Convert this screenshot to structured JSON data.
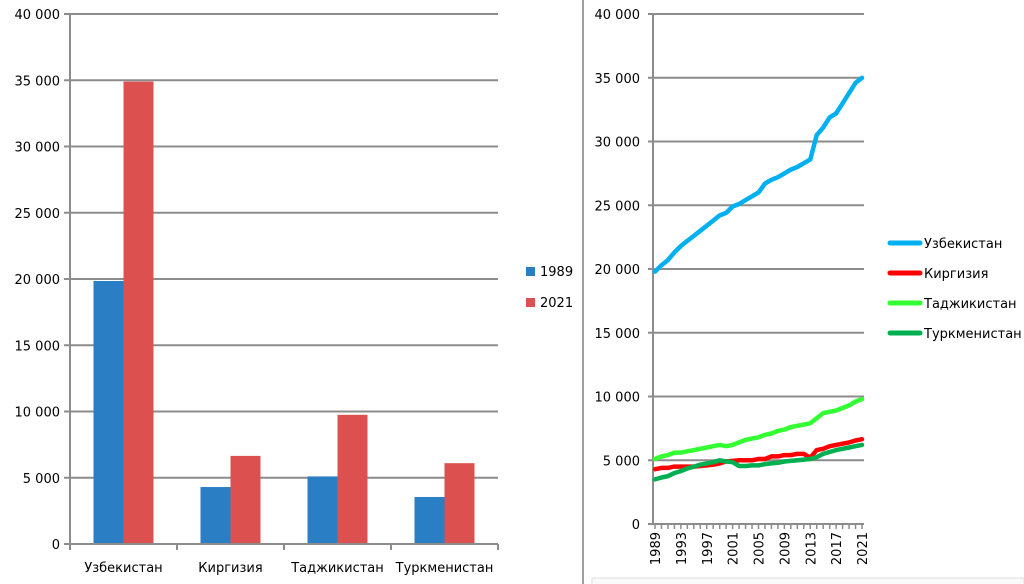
{
  "chart_data": [
    {
      "type": "bar",
      "categories": [
        "Узбекистан",
        "Киргизия",
        "Таджикистан",
        "Туркменистан"
      ],
      "series": [
        {
          "name": "1989",
          "color": "#2a7fc4",
          "values": [
            19850,
            4300,
            5100,
            3550
          ]
        },
        {
          "name": "2021",
          "color": "#dc5050",
          "values": [
            34900,
            6650,
            9750,
            6100
          ]
        }
      ],
      "ylim": [
        0,
        40000
      ],
      "yticks": [
        0,
        5000,
        10000,
        15000,
        20000,
        25000,
        30000,
        35000,
        40000
      ],
      "ytick_labels": [
        "0",
        "5 000",
        "10 000",
        "15 000",
        "20 000",
        "25 000",
        "30 000",
        "35 000",
        "40 000"
      ],
      "grid": true,
      "legend": "right"
    },
    {
      "type": "line",
      "x": [
        1989,
        1990,
        1991,
        1992,
        1993,
        1994,
        1995,
        1996,
        1997,
        1998,
        1999,
        2000,
        2001,
        2002,
        2003,
        2004,
        2005,
        2006,
        2007,
        2008,
        2009,
        2010,
        2011,
        2012,
        2013,
        2014,
        2015,
        2016,
        2017,
        2018,
        2019,
        2020,
        2021
      ],
      "xtick_labels": [
        "1989",
        "1993",
        "1997",
        "2001",
        "2005",
        "2009",
        "2013",
        "2017",
        "2021"
      ],
      "series": [
        {
          "name": "Узбекистан",
          "color": "#00b0f0",
          "values": [
            19800,
            20300,
            20700,
            21300,
            21800,
            22200,
            22600,
            23000,
            23400,
            23800,
            24200,
            24400,
            24900,
            25100,
            25400,
            25700,
            26000,
            26700,
            27000,
            27200,
            27500,
            27800,
            28000,
            28300,
            28600,
            30500,
            31100,
            31900,
            32200,
            33000,
            33800,
            34600,
            35000
          ]
        },
        {
          "name": "Киргизия",
          "color": "#ff0000",
          "values": [
            4300,
            4400,
            4400,
            4500,
            4500,
            4500,
            4500,
            4550,
            4600,
            4650,
            4750,
            4900,
            4950,
            5000,
            5000,
            5000,
            5100,
            5100,
            5300,
            5300,
            5400,
            5400,
            5500,
            5500,
            5200,
            5800,
            5900,
            6100,
            6200,
            6300,
            6400,
            6550,
            6650
          ]
        },
        {
          "name": "Таджикистан",
          "color": "#33ff33",
          "values": [
            5100,
            5300,
            5400,
            5600,
            5600,
            5700,
            5800,
            5900,
            6000,
            6100,
            6200,
            6100,
            6200,
            6400,
            6600,
            6700,
            6800,
            7000,
            7100,
            7300,
            7400,
            7600,
            7700,
            7800,
            7900,
            8300,
            8700,
            8800,
            8900,
            9100,
            9300,
            9600,
            9800
          ]
        },
        {
          "name": "Туркменистан",
          "color": "#00b050",
          "values": [
            3500,
            3650,
            3750,
            4000,
            4150,
            4350,
            4500,
            4650,
            4750,
            4850,
            5000,
            4900,
            4850,
            4550,
            4550,
            4600,
            4600,
            4700,
            4750,
            4800,
            4900,
            4950,
            5000,
            5050,
            5100,
            5250,
            5500,
            5650,
            5800,
            5900,
            6000,
            6100,
            6200
          ]
        }
      ],
      "ylim": [
        0,
        40000
      ],
      "yticks": [
        0,
        5000,
        10000,
        15000,
        20000,
        25000,
        30000,
        35000,
        40000
      ],
      "ytick_labels": [
        "0",
        "5 000",
        "10 000",
        "15 000",
        "20 000",
        "25 000",
        "30 000",
        "35 000",
        "40 000"
      ],
      "grid": true,
      "legend": "right"
    }
  ]
}
